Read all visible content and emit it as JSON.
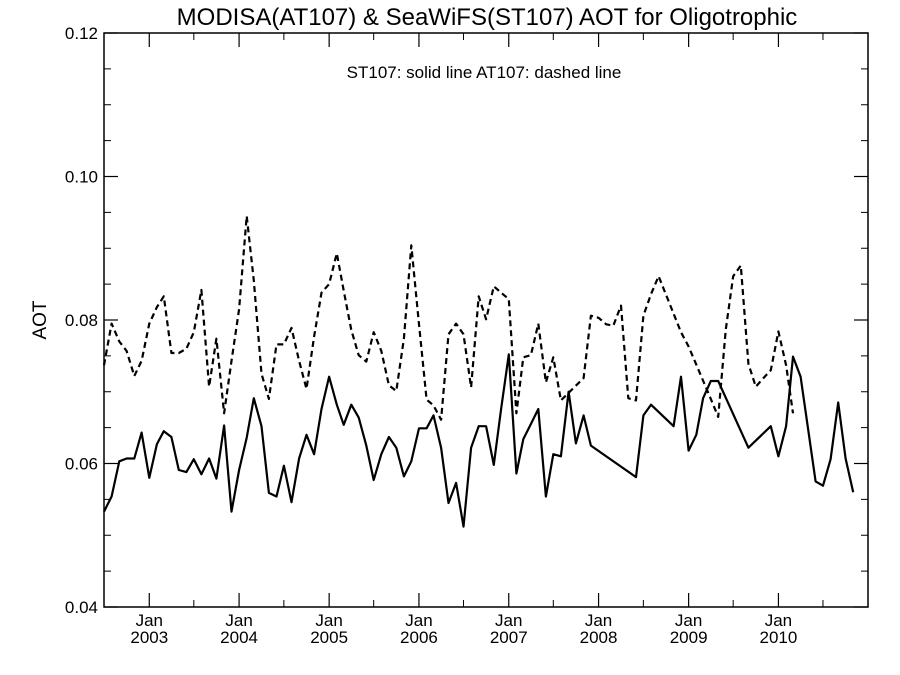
{
  "chart_data": {
    "type": "line",
    "title": "MODISA(AT107) & SeaWiFS(ST107)  AOT for Oligotrophic",
    "annotation": "ST107: solid line   AT107: dashed line",
    "ylabel": "AOT",
    "xlabel": "",
    "ylim": [
      0.04,
      0.12
    ],
    "xlim": [
      "2002-07-01",
      "2010-12-31"
    ],
    "yticks": [
      0.04,
      0.06,
      0.08,
      0.1,
      0.12
    ],
    "ytick_labels": [
      "0.04",
      "0.06",
      "0.08",
      "0.10",
      "0.12"
    ],
    "xticks": [
      {
        "date": "2003-01-01",
        "month": "Jan",
        "year": "2003"
      },
      {
        "date": "2004-01-01",
        "month": "Jan",
        "year": "2004"
      },
      {
        "date": "2005-01-01",
        "month": "Jan",
        "year": "2005"
      },
      {
        "date": "2006-01-01",
        "month": "Jan",
        "year": "2006"
      },
      {
        "date": "2007-01-01",
        "month": "Jan",
        "year": "2007"
      },
      {
        "date": "2008-01-01",
        "month": "Jan",
        "year": "2008"
      },
      {
        "date": "2009-01-01",
        "month": "Jan",
        "year": "2009"
      },
      {
        "date": "2010-01-01",
        "month": "Jan",
        "year": "2010"
      }
    ],
    "grid": false,
    "series": [
      {
        "name": "ST107",
        "style": "solid",
        "color": "#000000",
        "points": [
          [
            "2002-07-01",
            0.0533
          ],
          [
            "2002-08-01",
            0.0554
          ],
          [
            "2002-09-01",
            0.0603
          ],
          [
            "2002-10-01",
            0.0607
          ],
          [
            "2002-11-01",
            0.0607
          ],
          [
            "2002-12-01",
            0.0643
          ],
          [
            "2003-01-01",
            0.058
          ],
          [
            "2003-02-01",
            0.0627
          ],
          [
            "2003-03-01",
            0.0645
          ],
          [
            "2003-04-01",
            0.0637
          ],
          [
            "2003-05-01",
            0.0591
          ],
          [
            "2003-06-01",
            0.0588
          ],
          [
            "2003-07-01",
            0.0606
          ],
          [
            "2003-08-01",
            0.0585
          ],
          [
            "2003-09-01",
            0.0607
          ],
          [
            "2003-10-01",
            0.0579
          ],
          [
            "2003-11-01",
            0.0653
          ],
          [
            "2003-12-01",
            0.0533
          ],
          [
            "2004-01-01",
            0.0591
          ],
          [
            "2004-02-01",
            0.0636
          ],
          [
            "2004-03-01",
            0.0691
          ],
          [
            "2004-04-01",
            0.0652
          ],
          [
            "2004-05-01",
            0.0559
          ],
          [
            "2004-06-01",
            0.0554
          ],
          [
            "2004-07-01",
            0.0597
          ],
          [
            "2004-08-01",
            0.0546
          ],
          [
            "2004-09-01",
            0.0607
          ],
          [
            "2004-10-01",
            0.064
          ],
          [
            "2004-11-01",
            0.0613
          ],
          [
            "2004-12-01",
            0.0676
          ],
          [
            "2005-01-01",
            0.0721
          ],
          [
            "2005-02-01",
            0.0682
          ],
          [
            "2005-03-01",
            0.0654
          ],
          [
            "2005-04-01",
            0.0682
          ],
          [
            "2005-05-01",
            0.0664
          ],
          [
            "2005-06-01",
            0.0625
          ],
          [
            "2005-07-01",
            0.0577
          ],
          [
            "2005-08-01",
            0.0613
          ],
          [
            "2005-09-01",
            0.0637
          ],
          [
            "2005-10-01",
            0.0622
          ],
          [
            "2005-11-01",
            0.0582
          ],
          [
            "2005-12-01",
            0.0603
          ],
          [
            "2006-01-01",
            0.0649
          ],
          [
            "2006-02-01",
            0.0649
          ],
          [
            "2006-03-01",
            0.0667
          ],
          [
            "2006-04-01",
            0.0622
          ],
          [
            "2006-05-01",
            0.0545
          ],
          [
            "2006-06-01",
            0.0573
          ],
          [
            "2006-07-01",
            0.0512
          ],
          [
            "2006-08-01",
            0.0622
          ],
          [
            "2006-09-01",
            0.0652
          ],
          [
            "2006-10-01",
            0.0652
          ],
          [
            "2006-11-01",
            0.0598
          ],
          [
            "2006-12-01",
            0.0676
          ],
          [
            "2007-01-01",
            0.0752
          ],
          [
            "2007-02-01",
            0.0586
          ],
          [
            "2007-03-01",
            0.0634
          ],
          [
            "2007-04-01",
            0.0655
          ],
          [
            "2007-05-01",
            0.0676
          ],
          [
            "2007-06-01",
            0.0554
          ],
          [
            "2007-07-01",
            0.0613
          ],
          [
            "2007-08-01",
            0.061
          ],
          [
            "2007-09-01",
            0.07
          ],
          [
            "2007-10-01",
            0.0628
          ],
          [
            "2007-11-01",
            0.0667
          ],
          [
            "2007-12-01",
            0.0625
          ],
          [
            "2008-06-01",
            0.0581
          ],
          [
            "2008-07-01",
            0.0667
          ],
          [
            "2008-08-01",
            0.0682
          ],
          [
            "2008-11-01",
            0.0652
          ],
          [
            "2008-12-01",
            0.0721
          ],
          [
            "2009-01-01",
            0.0618
          ],
          [
            "2009-02-01",
            0.064
          ],
          [
            "2009-03-01",
            0.0691
          ],
          [
            "2009-04-01",
            0.0715
          ],
          [
            "2009-05-01",
            0.0715
          ],
          [
            "2009-09-01",
            0.0622
          ],
          [
            "2009-12-01",
            0.0652
          ],
          [
            "2010-01-01",
            0.061
          ],
          [
            "2010-02-01",
            0.0652
          ],
          [
            "2010-03-01",
            0.0749
          ],
          [
            "2010-04-01",
            0.0721
          ],
          [
            "2010-05-01",
            0.0649
          ],
          [
            "2010-06-01",
            0.0575
          ],
          [
            "2010-07-01",
            0.0569
          ],
          [
            "2010-08-01",
            0.0606
          ],
          [
            "2010-09-01",
            0.0685
          ],
          [
            "2010-10-01",
            0.0607
          ],
          [
            "2010-11-01",
            0.056
          ]
        ]
      },
      {
        "name": "AT107",
        "style": "dashed",
        "color": "#000000",
        "points": [
          [
            "2002-07-01",
            0.0737
          ],
          [
            "2002-08-01",
            0.0795
          ],
          [
            "2002-09-01",
            0.077
          ],
          [
            "2002-10-01",
            0.0757
          ],
          [
            "2002-11-01",
            0.0722
          ],
          [
            "2002-12-01",
            0.0743
          ],
          [
            "2003-01-01",
            0.0795
          ],
          [
            "2003-02-01",
            0.0818
          ],
          [
            "2003-03-01",
            0.0833
          ],
          [
            "2003-04-01",
            0.0754
          ],
          [
            "2003-05-01",
            0.0754
          ],
          [
            "2003-06-01",
            0.076
          ],
          [
            "2003-07-01",
            0.0783
          ],
          [
            "2003-08-01",
            0.0842
          ],
          [
            "2003-09-01",
            0.0707
          ],
          [
            "2003-10-01",
            0.0774
          ],
          [
            "2003-11-01",
            0.067
          ],
          [
            "2003-12-01",
            0.0743
          ],
          [
            "2004-01-01",
            0.0815
          ],
          [
            "2004-02-01",
            0.0945
          ],
          [
            "2004-03-01",
            0.0855
          ],
          [
            "2004-04-01",
            0.0725
          ],
          [
            "2004-05-01",
            0.069
          ],
          [
            "2004-06-01",
            0.0766
          ],
          [
            "2004-07-01",
            0.0766
          ],
          [
            "2004-08-01",
            0.0789
          ],
          [
            "2004-09-01",
            0.0743
          ],
          [
            "2004-10-01",
            0.0704
          ],
          [
            "2004-11-01",
            0.0777
          ],
          [
            "2004-12-01",
            0.0838
          ],
          [
            "2005-01-01",
            0.085
          ],
          [
            "2005-02-01",
            0.0893
          ],
          [
            "2005-03-01",
            0.0841
          ],
          [
            "2005-04-01",
            0.0786
          ],
          [
            "2005-05-01",
            0.0751
          ],
          [
            "2005-06-01",
            0.0742
          ],
          [
            "2005-07-01",
            0.0783
          ],
          [
            "2005-08-01",
            0.0757
          ],
          [
            "2005-09-01",
            0.0709
          ],
          [
            "2005-10-01",
            0.0701
          ],
          [
            "2005-11-01",
            0.0774
          ],
          [
            "2005-12-01",
            0.0904
          ],
          [
            "2006-01-01",
            0.0794
          ],
          [
            "2006-02-01",
            0.0689
          ],
          [
            "2006-03-01",
            0.0681
          ],
          [
            "2006-04-01",
            0.0661
          ],
          [
            "2006-05-01",
            0.078
          ],
          [
            "2006-06-01",
            0.0795
          ],
          [
            "2006-07-01",
            0.078
          ],
          [
            "2006-08-01",
            0.0706
          ],
          [
            "2006-09-01",
            0.0833
          ],
          [
            "2006-10-01",
            0.0801
          ],
          [
            "2006-11-01",
            0.0847
          ],
          [
            "2006-12-01",
            0.0838
          ],
          [
            "2007-01-01",
            0.0829
          ],
          [
            "2007-02-01",
            0.067
          ],
          [
            "2007-03-01",
            0.0748
          ],
          [
            "2007-04-01",
            0.0751
          ],
          [
            "2007-05-01",
            0.0795
          ],
          [
            "2007-06-01",
            0.0713
          ],
          [
            "2007-07-01",
            0.0748
          ],
          [
            "2007-08-01",
            0.0688
          ],
          [
            "2007-11-01",
            0.0719
          ],
          [
            "2007-12-01",
            0.0806
          ],
          [
            "2008-01-01",
            0.0803
          ],
          [
            "2008-02-01",
            0.0794
          ],
          [
            "2008-03-01",
            0.0792
          ],
          [
            "2008-04-01",
            0.082
          ],
          [
            "2008-05-01",
            0.0691
          ],
          [
            "2008-06-01",
            0.0688
          ],
          [
            "2008-07-01",
            0.0806
          ],
          [
            "2008-08-01",
            0.0836
          ],
          [
            "2008-09-01",
            0.0861
          ],
          [
            "2008-12-01",
            0.0783
          ],
          [
            "2009-01-01",
            0.0763
          ],
          [
            "2009-04-01",
            0.069
          ],
          [
            "2009-05-01",
            0.0665
          ],
          [
            "2009-06-01",
            0.0787
          ],
          [
            "2009-07-01",
            0.0861
          ],
          [
            "2009-08-01",
            0.0876
          ],
          [
            "2009-09-01",
            0.0739
          ],
          [
            "2009-10-01",
            0.0707
          ],
          [
            "2009-11-01",
            0.0719
          ],
          [
            "2009-12-01",
            0.073
          ],
          [
            "2010-01-01",
            0.0784
          ],
          [
            "2010-02-01",
            0.0737
          ],
          [
            "2010-03-01",
            0.067
          ]
        ]
      }
    ]
  }
}
